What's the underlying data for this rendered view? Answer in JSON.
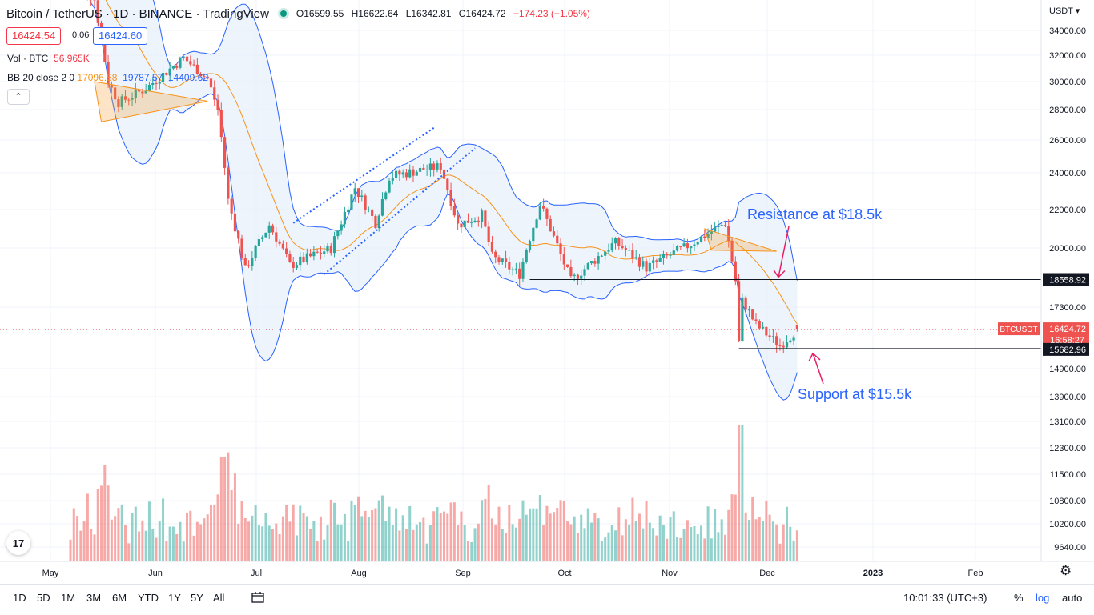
{
  "header": {
    "title": "Bitcoin / TetherUS · 1D · BINANCE · TradingView",
    "ohlc": {
      "open": "O16599.55",
      "high": "H16622.64",
      "low": "L16342.81",
      "close": "C16424.72",
      "change": "−174.23 (−1.05%)"
    }
  },
  "quote": {
    "sell": "16424.54",
    "spread": "0.06",
    "buy": "16424.60"
  },
  "indicators": {
    "vol": {
      "label": "Vol · BTC",
      "value": "56.965K"
    },
    "bb": {
      "label": "BB 20 close 2 0",
      "basis": "17096.58",
      "upper": "19787.57",
      "lower": "14409.62"
    }
  },
  "collapse_glyph": "⌃",
  "price_axis": {
    "currency": "USDT ▾",
    "ticks": [
      "34000.00",
      "32000.00",
      "30000.00",
      "28000.00",
      "26000.00",
      "24000.00",
      "22000.00",
      "20000.00",
      "17300.00",
      "14900.00",
      "13900.00",
      "13100.00",
      "12300.00",
      "11500.00",
      "10800.00",
      "10200.00",
      "9640.00"
    ],
    "tick_values": [
      34000,
      32000,
      30000,
      28000,
      26000,
      24000,
      22000,
      20000,
      17300,
      14900,
      13900,
      13100,
      12300,
      11500,
      10800,
      10200,
      9640
    ],
    "labels": {
      "resistance": "18558.92",
      "symbol": "BTCUSDT",
      "last": "16424.72",
      "countdown": "16:58:27",
      "support": "15682.96"
    }
  },
  "time_axis": {
    "labels": [
      "May",
      "Jun",
      "Jul",
      "Aug",
      "Sep",
      "Oct",
      "Nov",
      "Dec",
      "2023",
      "Feb"
    ],
    "bold": [
      "2023"
    ]
  },
  "annotations": {
    "resistance_text": "Resistance at $18.5k",
    "support_text": "Support at $15.5k"
  },
  "logo_text": "17",
  "toolbar": {
    "timeframes": [
      "1D",
      "5D",
      "1M",
      "3M",
      "6M",
      "YTD",
      "1Y",
      "5Y",
      "All"
    ],
    "clock": "10:01:33 (UTC+3)",
    "percent": "%",
    "log": "log",
    "auto": "auto"
  },
  "icons": {
    "settings": "gear-icon",
    "date_range": "calendar-icon",
    "status": "market-open-dot"
  },
  "colors": {
    "up": "#26a69a",
    "down": "#ef5350",
    "bb_basis": "#f7931a",
    "bb_band": "#2962ff",
    "bb_fill": "#e6f0fb",
    "annotation": "#2962ff",
    "pattern": "#f7931a"
  },
  "chart_data": {
    "type": "candlestick",
    "symbol": "BTCUSDT",
    "interval": "1D",
    "y_scale": "log",
    "x_range": [
      "2022-04-28",
      "2022-11-26"
    ],
    "key_levels": {
      "resistance": 18558.92,
      "support": 15682.96,
      "last": 16424.72
    },
    "last_candle": {
      "open": 16599.55,
      "high": 16622.64,
      "low": 16342.81,
      "close": 16424.72,
      "change": -174.23,
      "change_pct": -1.05
    },
    "bollinger_last": {
      "basis": 17096.58,
      "upper": 19787.57,
      "lower": 14409.62
    },
    "volume_last": "56.965K",
    "approx_path": [
      [
        "2022-04-28",
        39500
      ],
      [
        "2022-05-05",
        36500
      ],
      [
        "2022-05-09",
        30000
      ],
      [
        "2022-05-12",
        28500
      ],
      [
        "2022-05-20",
        29500
      ],
      [
        "2022-05-31",
        31800
      ],
      [
        "2022-06-07",
        30200
      ],
      [
        "2022-06-10",
        28000
      ],
      [
        "2022-06-13",
        22500
      ],
      [
        "2022-06-18",
        19000
      ],
      [
        "2022-06-25",
        21200
      ],
      [
        "2022-07-01",
        19200
      ],
      [
        "2022-07-13",
        20000
      ],
      [
        "2022-07-20",
        23200
      ],
      [
        "2022-07-26",
        21300
      ],
      [
        "2022-07-30",
        23800
      ],
      [
        "2022-08-14",
        24400
      ],
      [
        "2022-08-19",
        21200
      ],
      [
        "2022-08-26",
        21700
      ],
      [
        "2022-08-29",
        19600
      ],
      [
        "2022-09-06",
        18800
      ],
      [
        "2022-09-12",
        22300
      ],
      [
        "2022-09-18",
        19700
      ],
      [
        "2022-09-21",
        18500
      ],
      [
        "2022-10-04",
        20300
      ],
      [
        "2022-10-13",
        19100
      ],
      [
        "2022-10-25",
        20100
      ],
      [
        "2022-11-05",
        21300
      ],
      [
        "2022-11-08",
        18500
      ],
      [
        "2022-11-09",
        15900
      ],
      [
        "2022-11-10",
        17600
      ],
      [
        "2022-11-14",
        16600
      ],
      [
        "2022-11-21",
        15800
      ],
      [
        "2022-11-26",
        16424.72
      ]
    ]
  }
}
